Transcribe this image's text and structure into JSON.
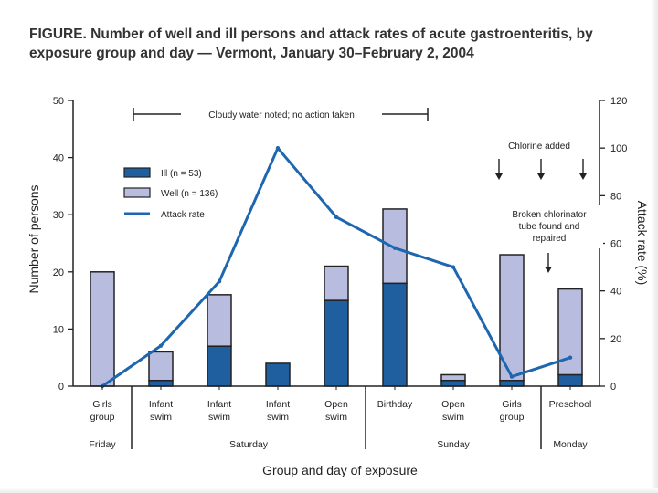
{
  "figure": {
    "title_line1": "FIGURE. Number of well and ill persons and attack rates of acute gastroenteritis, by",
    "title_line2": "exposure group and day — Vermont, January 30–February 2, 2004"
  },
  "colors": {
    "ill": "#1f5fa0",
    "well": "#b8bde0",
    "attack_line": "#1e66b0",
    "axis": "#222222"
  },
  "chart_data": {
    "type": "bar",
    "stacked": true,
    "categories": [
      {
        "line1": "Girls",
        "line2": "group"
      },
      {
        "line1": "Infant",
        "line2": "swim"
      },
      {
        "line1": "Infant",
        "line2": "swim"
      },
      {
        "line1": "Infant",
        "line2": "swim"
      },
      {
        "line1": "Open",
        "line2": "swim"
      },
      {
        "line1": "Birthday",
        "line2": ""
      },
      {
        "line1": "Open",
        "line2": "swim"
      },
      {
        "line1": "Girls",
        "line2": "group"
      },
      {
        "line1": "Preschool",
        "line2": ""
      }
    ],
    "days": [
      {
        "label": "Friday",
        "from": 0,
        "to": 0
      },
      {
        "label": "Saturday",
        "from": 1,
        "to": 4
      },
      {
        "label": "Sunday",
        "from": 5,
        "to": 7
      },
      {
        "label": "Monday",
        "from": 8,
        "to": 8
      }
    ],
    "series": [
      {
        "name": "Ill (n = 53)",
        "type": "bar",
        "values": [
          0,
          1,
          7,
          4,
          15,
          18,
          1,
          1,
          2
        ]
      },
      {
        "name": "Well (n = 136)",
        "type": "bar",
        "values": [
          20,
          5,
          9,
          0,
          6,
          13,
          1,
          22,
          15
        ]
      },
      {
        "name": "Attack rate",
        "type": "line",
        "axis": "right",
        "values": [
          0,
          17,
          44,
          100,
          71,
          58,
          50,
          4,
          12
        ]
      }
    ],
    "left_axis": {
      "label": "Number of persons",
      "min": 0,
      "max": 50,
      "ticks": [
        "0",
        "10",
        "20",
        "30",
        "40",
        "50"
      ]
    },
    "right_axis": {
      "label": "Attack rate (%)",
      "min": 0,
      "max": 120,
      "ticks": [
        "0",
        "20",
        "40",
        "60",
        "80",
        "100",
        "120"
      ]
    },
    "xlabel": "Group and day of exposure",
    "annotations": {
      "cloudy": "Cloudy water noted; no action taken",
      "chlorine": "Chlorine added",
      "broken_line1": "Broken chlorinator",
      "broken_line2": "tube found and",
      "broken_line3": "repaired"
    }
  }
}
